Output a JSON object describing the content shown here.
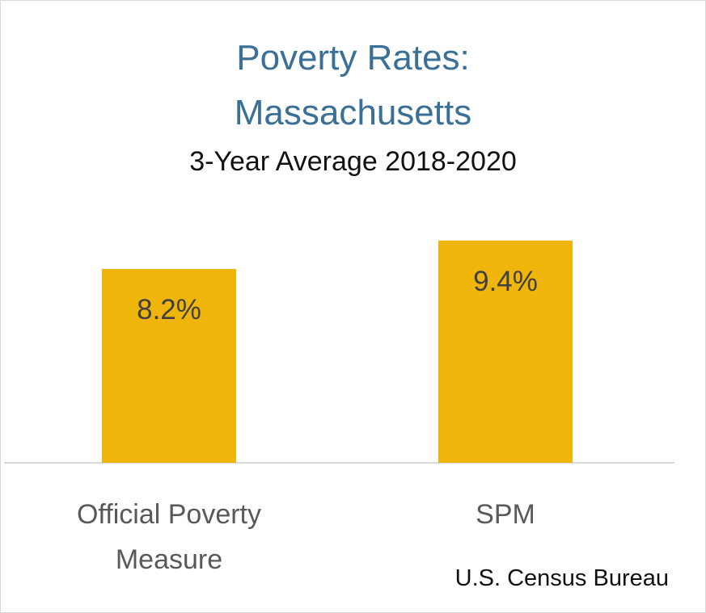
{
  "chart_data": {
    "type": "bar",
    "title_line1": "Poverty Rates:",
    "title_line2": "Massachusetts",
    "subtitle": "3-Year Average 2018-2020",
    "categories": [
      {
        "lines": [
          "Official Poverty",
          "Measure"
        ]
      },
      {
        "lines": [
          "SPM"
        ]
      }
    ],
    "values": [
      8.2,
      9.4
    ],
    "data_labels": [
      "8.2%",
      "9.4%"
    ],
    "ylim": [
      0,
      15
    ],
    "grid": false,
    "bar_color": "#f0b50a",
    "source": "U.S. Census Bureau"
  }
}
